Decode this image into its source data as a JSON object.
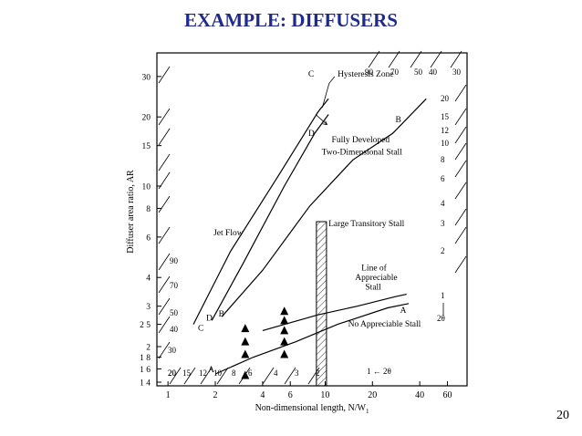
{
  "slide": {
    "title": "EXAMPLE: DIFFUSERS",
    "page_number": "20"
  },
  "chart_data": {
    "type": "scatter",
    "title": "",
    "xlabel": "Non-dimensional length, N/W",
    "xlabel_subscript": "1",
    "ylabel": "Diffuser area ratio, AR",
    "x_scale": "log",
    "y_scale": "log",
    "xlim": [
      0.85,
      80
    ],
    "ylim": [
      1.35,
      38
    ],
    "x_ticks": [
      1,
      2,
      4,
      6,
      10,
      20,
      40,
      60
    ],
    "y_ticks": [
      1.4,
      1.6,
      1.8,
      2,
      2.5,
      3,
      4,
      6,
      8,
      10,
      15,
      20,
      30
    ],
    "y_tick_labels": [
      "1 4",
      "1 6",
      "1 8",
      "2",
      "2 5",
      "3",
      "4",
      "6",
      "8",
      "10",
      "15",
      "20",
      "30"
    ],
    "angle_labels_left": [
      "90",
      "70",
      "50",
      "40",
      "30",
      "20"
    ],
    "angle_labels_bottom": [
      "20",
      "15",
      "12",
      "10",
      "8",
      "6",
      "4",
      "3",
      "2"
    ],
    "angle_labels_top": [
      "90",
      "70",
      "50",
      "40",
      "30"
    ],
    "angle_labels_right": [
      "20",
      "15",
      "12",
      "10",
      "8",
      "6",
      "4",
      "3",
      "2"
    ],
    "angle_unit_label": "1 ← 2θ",
    "angle_unit_label_right_top": "1",
    "angle_unit_label_right_bottom": "2θ",
    "series": [
      {
        "name": "Line A",
        "label": "A",
        "points": [
          [
            2.0,
            1.52
          ],
          [
            3.5,
            1.8
          ],
          [
            6.5,
            2.1
          ],
          [
            12,
            2.5
          ],
          [
            25,
            2.95
          ],
          [
            34,
            3.08
          ]
        ]
      },
      {
        "name": "Line B",
        "label": "B",
        "points": [
          [
            2.2,
            2.7
          ],
          [
            4,
            4.3
          ],
          [
            8,
            8.2
          ],
          [
            15,
            13
          ],
          [
            27,
            17
          ],
          [
            44,
            24
          ]
        ]
      },
      {
        "name": "Line C",
        "label": "C",
        "points": [
          [
            1.45,
            2.5
          ],
          [
            2.5,
            5.2
          ],
          [
            5,
            11
          ],
          [
            9,
            21
          ],
          [
            10.5,
            24
          ]
        ]
      },
      {
        "name": "Line D",
        "label": "D",
        "points": [
          [
            1.9,
            2.6
          ],
          [
            3,
            4.6
          ],
          [
            5.5,
            10
          ],
          [
            8.6,
            17
          ],
          [
            10.5,
            20.5
          ]
        ]
      },
      {
        "name": "Line of Appreciable Stall",
        "label": "",
        "points": [
          [
            4.0,
            2.35
          ],
          [
            9,
            2.75
          ],
          [
            16,
            3.0
          ],
          [
            28,
            3.3
          ],
          [
            33,
            3.38
          ]
        ]
      },
      {
        "name": "Data points",
        "marker": "triangle",
        "points": [
          [
            3.1,
            1.5
          ],
          [
            3.1,
            1.85
          ],
          [
            3.1,
            2.1
          ],
          [
            3.1,
            2.4
          ],
          [
            5.5,
            1.85
          ],
          [
            5.5,
            2.1
          ],
          [
            5.5,
            2.35
          ],
          [
            5.5,
            2.6
          ],
          [
            5.5,
            2.85
          ]
        ]
      }
    ],
    "hatched_band": {
      "x_from": 8.8,
      "x_to": 10.2,
      "y_from": 1.35,
      "y_to": 7.0
    },
    "annotations": [
      {
        "text": "Jet Flow",
        "x": 1.95,
        "y": 6.1
      },
      {
        "text": "Hysteresis Zone",
        "x": 12,
        "y": 30
      },
      {
        "text": "Fully Developed",
        "x": 11,
        "y": 15.5
      },
      {
        "text": "Two-Dimensional Stall",
        "x": 9.5,
        "y": 13.7
      },
      {
        "text": "Large Transitory Stall",
        "x": 10.5,
        "y": 6.7
      },
      {
        "text": "Line of",
        "x": 17,
        "y": 4.3
      },
      {
        "text": "Appreciable",
        "x": 15.5,
        "y": 3.9
      },
      {
        "text": "Stall",
        "x": 18,
        "y": 3.55
      },
      {
        "text": "No Appreciable Stall",
        "x": 14,
        "y": 2.45
      },
      {
        "text": "C",
        "x": 7.8,
        "y": 30
      },
      {
        "text": "D",
        "x": 7.8,
        "y": 16.5
      },
      {
        "text": "B",
        "x": 28,
        "y": 19
      },
      {
        "text": "A",
        "x": 30,
        "y": 2.8
      },
      {
        "text": "C",
        "x": 1.55,
        "y": 2.35
      },
      {
        "text": "D",
        "x": 1.75,
        "y": 2.6
      },
      {
        "text": "B",
        "x": 2.1,
        "y": 2.7
      },
      {
        "text": "A",
        "x": 1.8,
        "y": 1.55
      }
    ],
    "grid": false,
    "legend": "none"
  }
}
